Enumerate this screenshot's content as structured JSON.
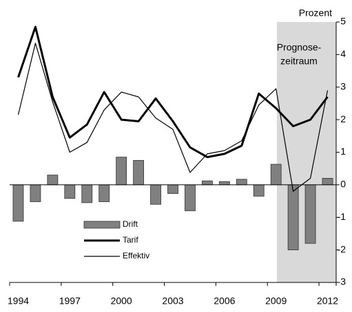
{
  "chart_data": {
    "type": "bar_line",
    "y_axis_label": "Prozent",
    "annotation": [
      "Prognose-",
      "zeitraum"
    ],
    "categories": [
      "1994",
      null,
      null,
      "1997",
      null,
      null,
      "2000",
      null,
      null,
      "2003",
      null,
      null,
      "2006",
      null,
      null,
      "2009",
      null,
      null,
      "2012"
    ],
    "series": [
      {
        "name": "Drift",
        "type": "bar",
        "color": "#808080",
        "values": [
          -1.12,
          -0.52,
          0.3,
          -0.42,
          -0.55,
          -0.52,
          0.85,
          0.75,
          -0.6,
          -0.27,
          -0.8,
          0.12,
          0.1,
          0.17,
          -0.35,
          0.63,
          -2.0,
          -1.8,
          0.2
        ]
      },
      {
        "name": "Tarif",
        "type": "line",
        "color": "#000000",
        "values": [
          3.3,
          4.85,
          2.7,
          1.45,
          1.85,
          2.85,
          2.0,
          1.95,
          2.65,
          1.95,
          1.15,
          0.85,
          0.95,
          1.2,
          2.8,
          2.35,
          1.8,
          2.0,
          2.7
        ]
      },
      {
        "name": "Effektiv",
        "type": "line",
        "color": "#000000",
        "values": [
          2.15,
          4.35,
          2.55,
          1.0,
          1.3,
          2.3,
          2.85,
          2.7,
          2.05,
          1.7,
          0.38,
          0.95,
          1.05,
          1.35,
          2.45,
          2.95,
          -0.2,
          0.2,
          2.9
        ]
      }
    ],
    "ylim": [
      -3,
      5
    ],
    "yticks": [
      -3,
      -2,
      -1,
      0,
      1,
      2,
      3,
      4,
      5
    ],
    "shade_color": "#d9d9d9"
  }
}
